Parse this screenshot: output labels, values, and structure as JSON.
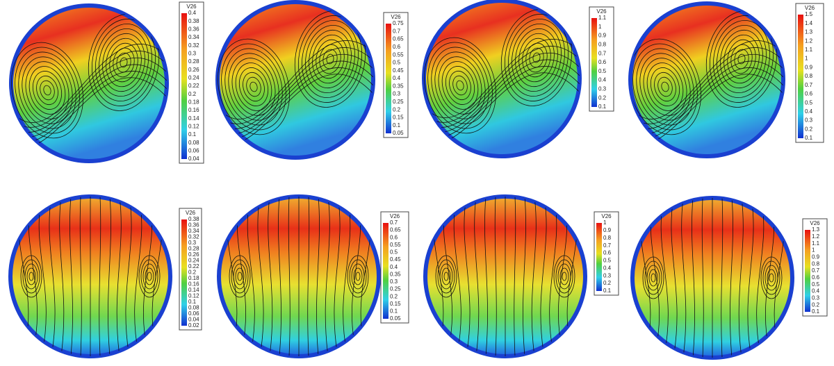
{
  "panels": [
    {
      "colorbar": {
        "title": "V26",
        "ticks": [
          "0.4",
          "0.38",
          "0.36",
          "0.34",
          "0.32",
          "0.3",
          "0.28",
          "0.26",
          "0.24",
          "0.22",
          "0.2",
          "0.18",
          "0.16",
          "0.14",
          "0.12",
          "0.1",
          "0.08",
          "0.06",
          "0.04"
        ]
      }
    },
    {
      "colorbar": {
        "title": "V26",
        "ticks": [
          "0.75",
          "0.7",
          "0.65",
          "0.6",
          "0.55",
          "0.5",
          "0.45",
          "0.4",
          "0.35",
          "0.3",
          "0.25",
          "0.2",
          "0.15",
          "0.1",
          "0.05"
        ]
      }
    },
    {
      "colorbar": {
        "title": "V26",
        "ticks": [
          "1.1",
          "1",
          "0.9",
          "0.8",
          "0.7",
          "0.6",
          "0.5",
          "0.4",
          "0.3",
          "0.2",
          "0.1"
        ]
      }
    },
    {
      "colorbar": {
        "title": "V26",
        "ticks": [
          "1.5",
          "1.4",
          "1.3",
          "1.2",
          "1.1",
          "1",
          "0.9",
          "0.8",
          "0.7",
          "0.6",
          "0.5",
          "0.4",
          "0.3",
          "0.2",
          "0.1"
        ]
      }
    },
    {
      "colorbar": {
        "title": "V26",
        "ticks": [
          "0.38",
          "0.36",
          "0.34",
          "0.32",
          "0.3",
          "0.28",
          "0.26",
          "0.24",
          "0.22",
          "0.2",
          "0.18",
          "0.16",
          "0.14",
          "0.12",
          "0.1",
          "0.08",
          "0.06",
          "0.04",
          "0.02"
        ]
      }
    },
    {
      "colorbar": {
        "title": "V26",
        "ticks": [
          "0.7",
          "0.65",
          "0.6",
          "0.55",
          "0.5",
          "0.45",
          "0.4",
          "0.35",
          "0.3",
          "0.25",
          "0.2",
          "0.15",
          "0.1",
          "0.05"
        ]
      }
    },
    {
      "colorbar": {
        "title": "V26",
        "ticks": [
          "1",
          "0.9",
          "0.8",
          "0.7",
          "0.6",
          "0.5",
          "0.4",
          "0.3",
          "0.2",
          "0.1"
        ]
      }
    },
    {
      "colorbar": {
        "title": "V26",
        "ticks": [
          "1.3",
          "1.2",
          "1.1",
          "1",
          "0.9",
          "0.8",
          "0.7",
          "0.6",
          "0.5",
          "0.4",
          "0.3",
          "0.2",
          "0.1"
        ]
      }
    }
  ]
}
